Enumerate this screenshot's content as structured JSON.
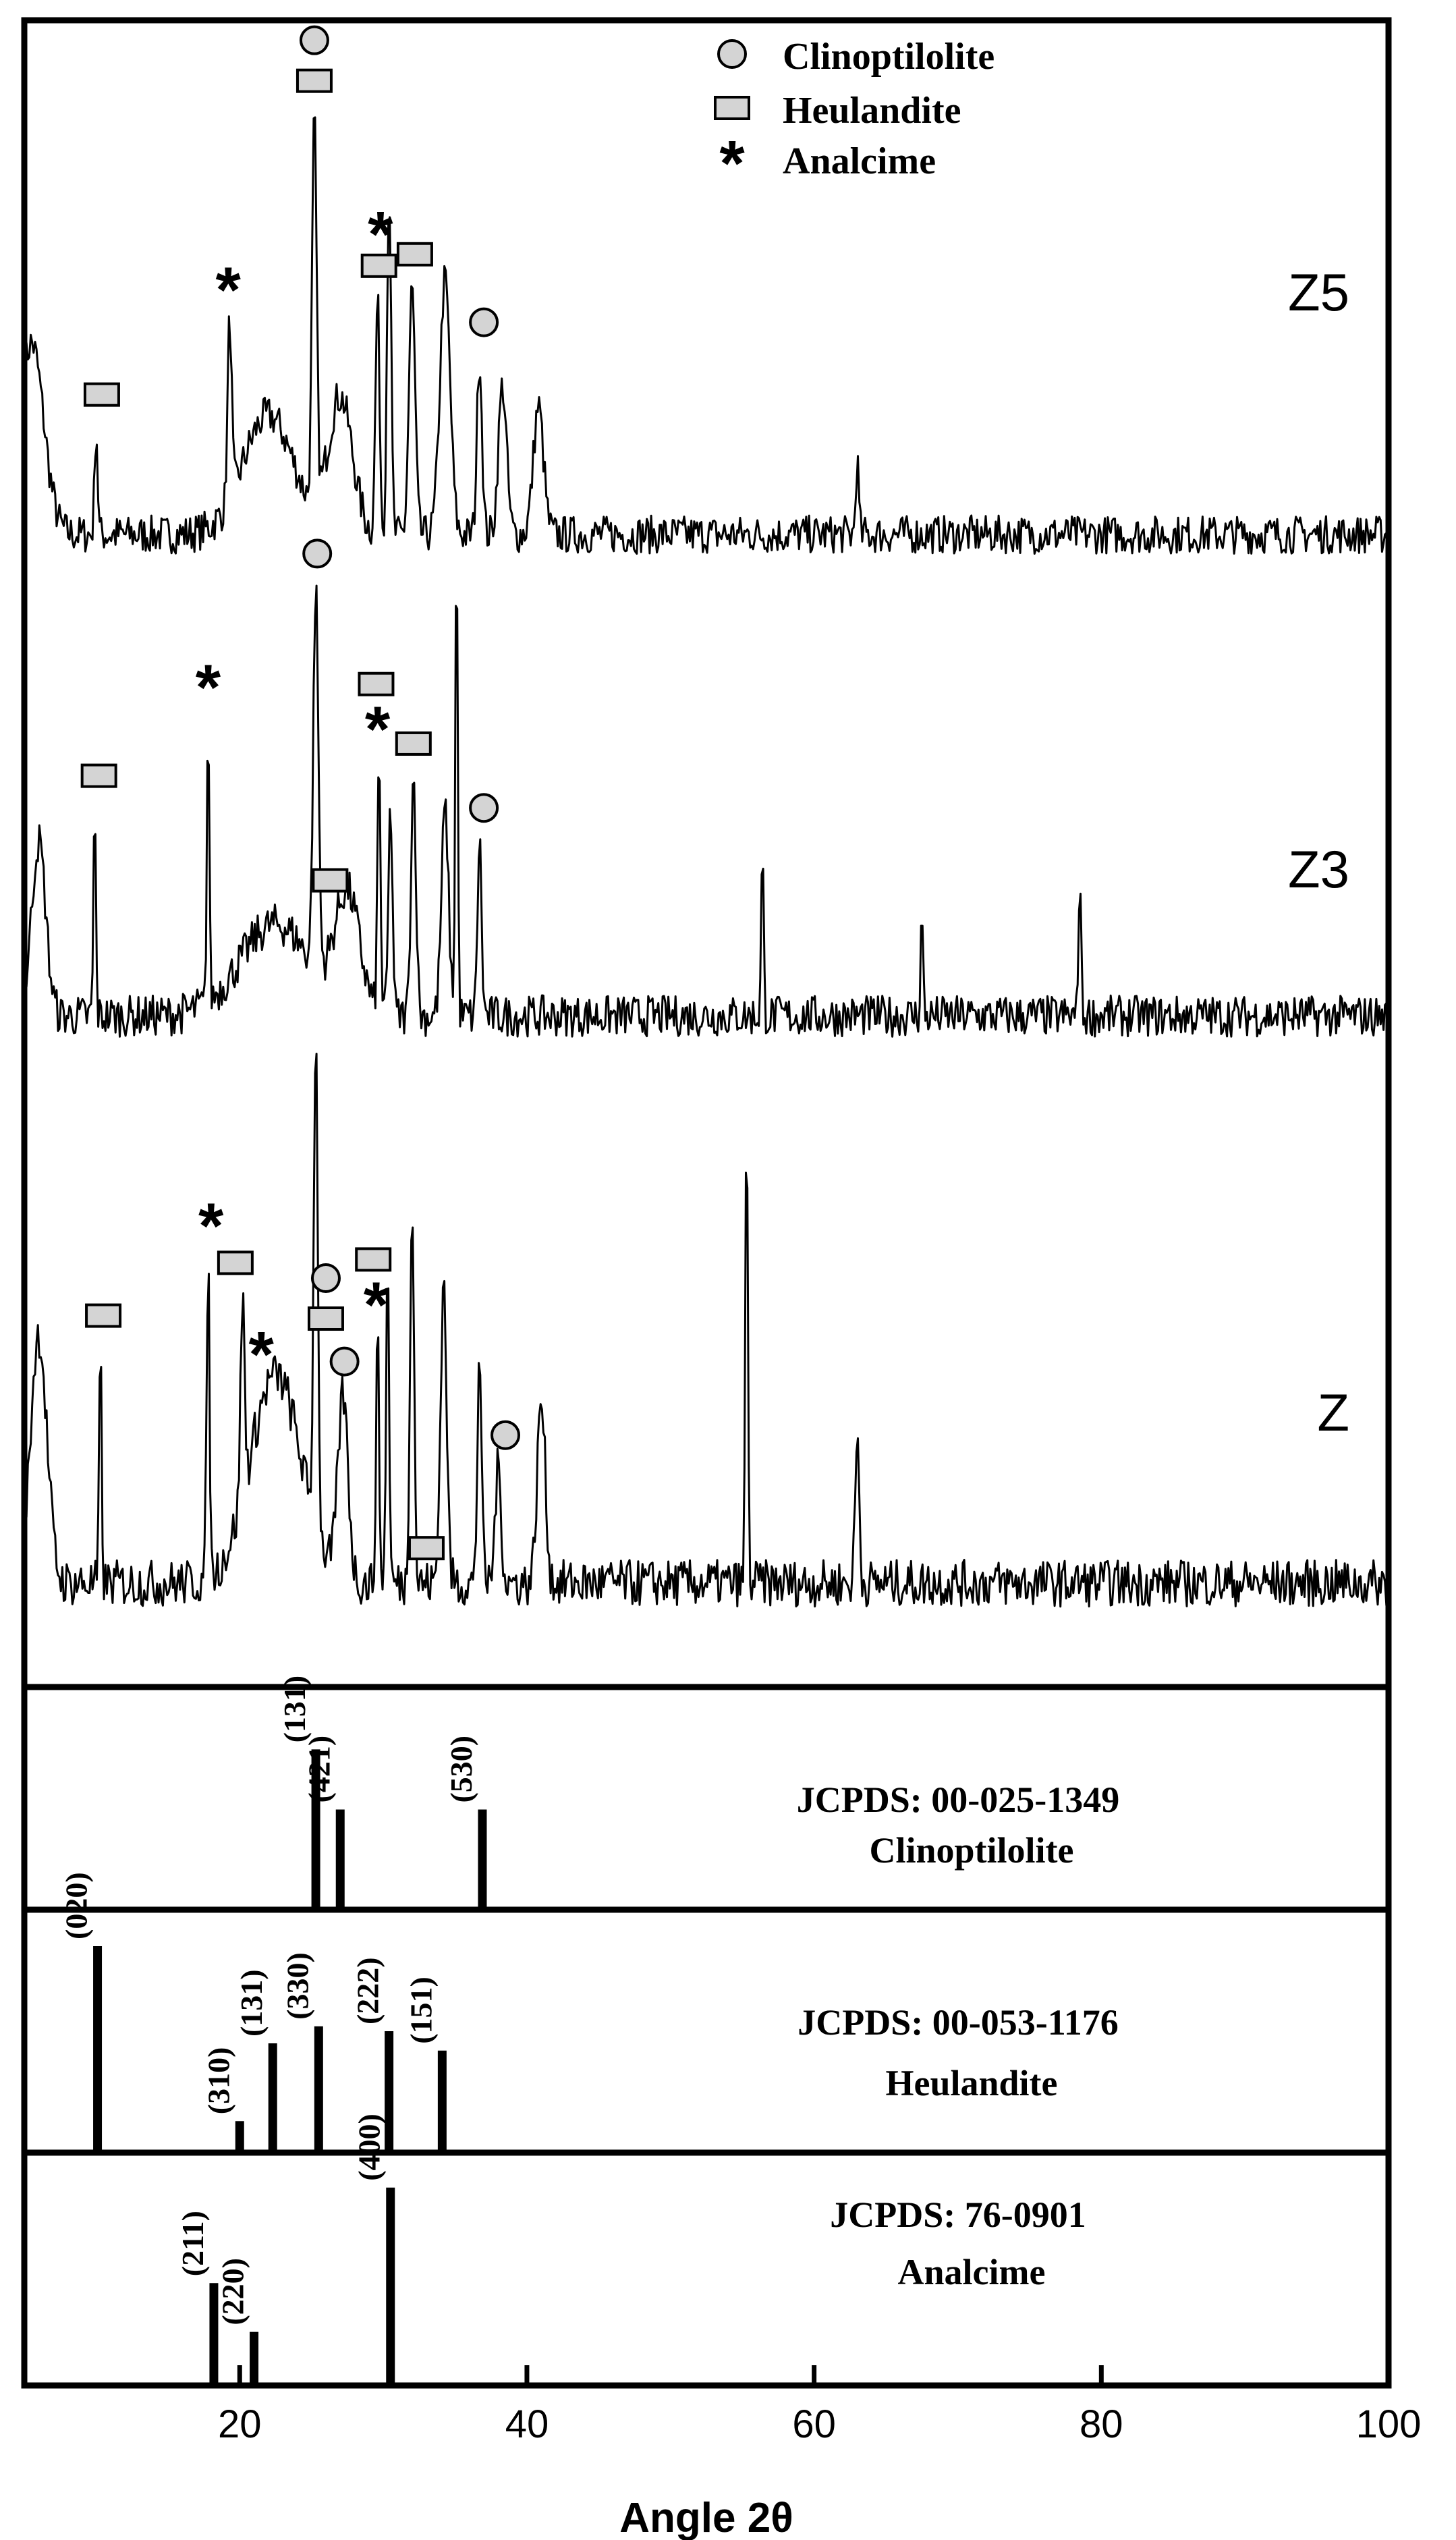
{
  "chart_data": {
    "type": "line",
    "xlabel": "Angle 2θ",
    "xlim": [
      5,
      100
    ],
    "x_ticks": [
      "20",
      "40",
      "60",
      "80",
      "100"
    ],
    "legend": {
      "placement": "top-right",
      "entries": [
        {
          "symbol": "circle",
          "label": "Clinoptilolite"
        },
        {
          "symbol": "square",
          "label": "Heulandite"
        },
        {
          "symbol": "star",
          "label": "Analcime"
        }
      ]
    },
    "series": [
      {
        "name": "Z5",
        "baseline": 0.06,
        "peaks": [
          {
            "x": 5.5,
            "h": 0.45,
            "w": 1.2
          },
          {
            "x": 10.0,
            "h": 0.25,
            "w": 0.15
          },
          {
            "x": 19.3,
            "h": 0.42,
            "w": 0.2
          },
          {
            "x": 22.0,
            "h": 0.28,
            "w": 2.5
          },
          {
            "x": 25.2,
            "h": 0.9,
            "w": 0.22
          },
          {
            "x": 27.0,
            "h": 0.32,
            "w": 1.2
          },
          {
            "x": 29.6,
            "h": 0.55,
            "w": 0.2
          },
          {
            "x": 30.4,
            "h": 0.82,
            "w": 0.2
          },
          {
            "x": 32.0,
            "h": 0.58,
            "w": 0.3
          },
          {
            "x": 34.3,
            "h": 0.6,
            "w": 0.5
          },
          {
            "x": 36.7,
            "h": 0.42,
            "w": 0.25
          },
          {
            "x": 38.3,
            "h": 0.35,
            "w": 0.4
          },
          {
            "x": 40.8,
            "h": 0.3,
            "w": 0.5
          },
          {
            "x": 63.0,
            "h": 0.17,
            "w": 0.15
          }
        ],
        "markers": [
          {
            "symbol": "square",
            "x": 10.4
          },
          {
            "symbol": "star",
            "x": 19.2
          },
          {
            "symbol": "square",
            "x": 25.2
          },
          {
            "symbol": "circle",
            "x": 25.2
          },
          {
            "symbol": "star",
            "x": 29.8
          },
          {
            "symbol": "square",
            "x": 29.7
          },
          {
            "symbol": "square",
            "x": 32.2
          },
          {
            "symbol": "circle",
            "x": 37.0
          }
        ]
      },
      {
        "name": "Z3",
        "baseline": 0.08,
        "peaks": [
          {
            "x": 6.0,
            "h": 0.38,
            "w": 0.7
          },
          {
            "x": 9.9,
            "h": 0.45,
            "w": 0.12
          },
          {
            "x": 17.8,
            "h": 0.62,
            "w": 0.12
          },
          {
            "x": 22.5,
            "h": 0.2,
            "w": 3.5
          },
          {
            "x": 25.3,
            "h": 0.82,
            "w": 0.25
          },
          {
            "x": 27.5,
            "h": 0.25,
            "w": 1.2
          },
          {
            "x": 29.7,
            "h": 0.55,
            "w": 0.15
          },
          {
            "x": 30.5,
            "h": 0.45,
            "w": 0.2
          },
          {
            "x": 32.1,
            "h": 0.52,
            "w": 0.25
          },
          {
            "x": 34.3,
            "h": 0.45,
            "w": 0.35
          },
          {
            "x": 35.1,
            "h": 1.05,
            "w": 0.12
          },
          {
            "x": 36.7,
            "h": 0.38,
            "w": 0.2
          },
          {
            "x": 56.4,
            "h": 0.35,
            "w": 0.12
          },
          {
            "x": 67.5,
            "h": 0.22,
            "w": 0.12
          },
          {
            "x": 78.5,
            "h": 0.32,
            "w": 0.12
          }
        ],
        "markers": [
          {
            "symbol": "square",
            "x": 10.2
          },
          {
            "symbol": "star",
            "x": 17.8
          },
          {
            "symbol": "square",
            "x": 26.3
          },
          {
            "symbol": "circle",
            "x": 25.4
          },
          {
            "symbol": "star",
            "x": 29.6
          },
          {
            "symbol": "square",
            "x": 29.5
          },
          {
            "symbol": "square",
            "x": 32.1
          },
          {
            "symbol": "circle",
            "x": 37.0
          }
        ]
      },
      {
        "name": "Z",
        "baseline": 0.07,
        "peaks": [
          {
            "x": 6.0,
            "h": 0.48,
            "w": 0.8
          },
          {
            "x": 10.3,
            "h": 0.45,
            "w": 0.12
          },
          {
            "x": 17.8,
            "h": 0.62,
            "w": 0.14
          },
          {
            "x": 20.2,
            "h": 0.38,
            "w": 0.2
          },
          {
            "x": 22.5,
            "h": 0.4,
            "w": 2.5
          },
          {
            "x": 25.3,
            "h": 0.95,
            "w": 0.2
          },
          {
            "x": 27.2,
            "h": 0.35,
            "w": 0.5
          },
          {
            "x": 29.6,
            "h": 0.48,
            "w": 0.15
          },
          {
            "x": 30.3,
            "h": 0.62,
            "w": 0.15
          },
          {
            "x": 32.0,
            "h": 0.75,
            "w": 0.2
          },
          {
            "x": 34.2,
            "h": 0.58,
            "w": 0.3
          },
          {
            "x": 36.7,
            "h": 0.45,
            "w": 0.2
          },
          {
            "x": 38.0,
            "h": 0.22,
            "w": 0.3
          },
          {
            "x": 41.0,
            "h": 0.35,
            "w": 0.4
          },
          {
            "x": 55.3,
            "h": 0.92,
            "w": 0.12
          },
          {
            "x": 63.0,
            "h": 0.28,
            "w": 0.2
          }
        ],
        "markers": [
          {
            "symbol": "square",
            "x": 10.5
          },
          {
            "symbol": "star",
            "x": 18.0
          },
          {
            "symbol": "square",
            "x": 19.7
          },
          {
            "symbol": "star",
            "x": 21.5
          },
          {
            "symbol": "square",
            "x": 26.0
          },
          {
            "symbol": "circle",
            "x": 26.0
          },
          {
            "symbol": "circle",
            "x": 27.3
          },
          {
            "symbol": "star",
            "x": 29.5
          },
          {
            "symbol": "square",
            "x": 29.3
          },
          {
            "symbol": "square",
            "x": 33.0
          },
          {
            "symbol": "circle",
            "x": 38.5
          }
        ]
      }
    ],
    "references": [
      {
        "title": "JCPDS: 00-025-1349",
        "mineral": "Clinoptilolite",
        "lines": [
          {
            "x": 25.3,
            "h": 0.72,
            "hkl": "(131)"
          },
          {
            "x": 27.0,
            "h": 0.45,
            "hkl": "(421)"
          },
          {
            "x": 36.9,
            "h": 0.45,
            "hkl": "(530)"
          }
        ]
      },
      {
        "title": "JCPDS: 00-053-1176",
        "mineral": "Heulandite",
        "lines": [
          {
            "x": 10.1,
            "h": 0.85,
            "hkl": "(020)"
          },
          {
            "x": 20.0,
            "h": 0.13,
            "hkl": "(310)"
          },
          {
            "x": 22.3,
            "h": 0.45,
            "hkl": "(131)"
          },
          {
            "x": 25.5,
            "h": 0.52,
            "hkl": "(330)"
          },
          {
            "x": 30.4,
            "h": 0.5,
            "hkl": "(222)"
          },
          {
            "x": 34.1,
            "h": 0.42,
            "hkl": "(151)"
          }
        ]
      },
      {
        "title": "JCPDS: 76-0901",
        "mineral": "Analcime",
        "lines": [
          {
            "x": 18.2,
            "h": 0.44,
            "hkl": "(211)"
          },
          {
            "x": 21.0,
            "h": 0.23,
            "hkl": "(220)"
          },
          {
            "x": 30.5,
            "h": 0.85,
            "hkl": "(400)"
          }
        ]
      }
    ]
  }
}
